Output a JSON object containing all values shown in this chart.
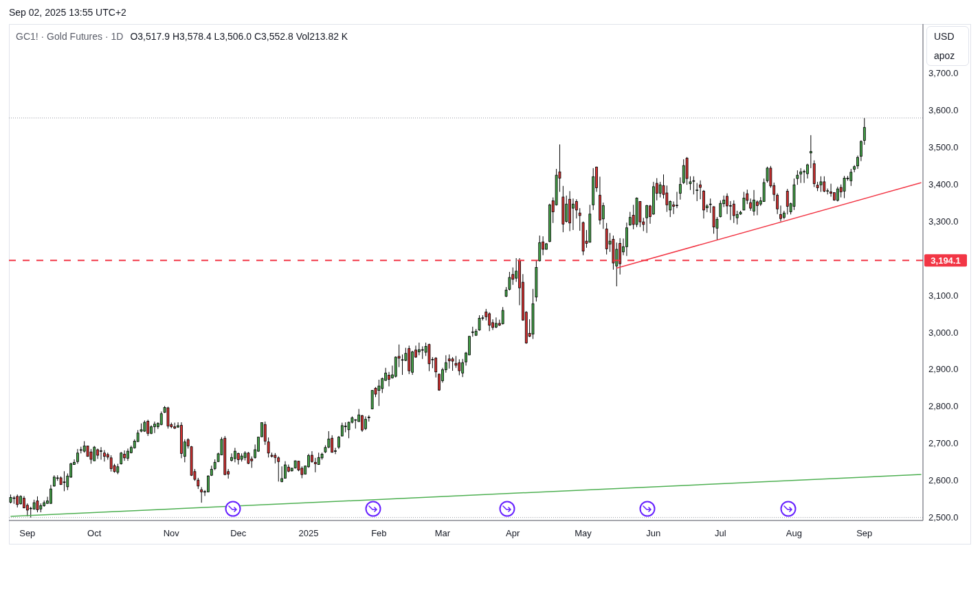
{
  "chart_data": {
    "type": "candlestick",
    "title": "GC1! · Gold Futures · 1D",
    "subtitle": "O3,517.9 H3,578.4 L3,506.0 C3,552.8 Vol213.82 K",
    "annotations": [
      "Sep 02, 2025 13:55 UTC+2",
      "USD",
      "apoz"
    ],
    "categories": [
      null,
      null,
      null,
      null,
      null,
      "Sep",
      null,
      null,
      null,
      null,
      null,
      null,
      null,
      null,
      null,
      null,
      null,
      null,
      null,
      null,
      null,
      null,
      null,
      null,
      null,
      "Oct",
      null,
      null,
      null,
      null,
      null,
      null,
      null,
      null,
      null,
      null,
      null,
      null,
      null,
      null,
      null,
      null,
      null,
      null,
      null,
      null,
      null,
      null,
      "Nov",
      null,
      null,
      null,
      null,
      null,
      null,
      null,
      null,
      null,
      null,
      null,
      null,
      null,
      null,
      null,
      null,
      null,
      null,
      null,
      "Dec",
      null,
      null,
      null,
      null,
      null,
      null,
      null,
      null,
      null,
      null,
      null,
      null,
      null,
      null,
      null,
      null,
      null,
      null,
      null,
      null,
      "2025",
      null,
      null,
      null,
      null,
      null,
      null,
      null,
      null,
      null,
      null,
      null,
      null,
      null,
      null,
      null,
      null,
      null,
      null,
      null,
      null,
      "Feb",
      null,
      null,
      null,
      null,
      null,
      null,
      null,
      null,
      null,
      null,
      null,
      null,
      null,
      null,
      null,
      null,
      null,
      null,
      "Mar",
      null,
      null,
      null,
      null,
      null,
      null,
      null,
      null,
      null,
      null,
      null,
      null,
      null,
      null,
      null,
      null,
      null,
      null,
      null,
      null,
      "Apr",
      null,
      null,
      null,
      null,
      null,
      null,
      null,
      null,
      null,
      null,
      null,
      null,
      null,
      null,
      null,
      null,
      null,
      null,
      null,
      null,
      "May",
      null,
      null,
      null,
      null,
      null,
      null,
      null,
      null,
      null,
      null,
      null,
      null,
      null,
      null,
      null,
      null,
      null,
      null,
      null,
      null,
      "Jun",
      null,
      null,
      null,
      null,
      null,
      null,
      null,
      null,
      null,
      null,
      null,
      null,
      null,
      null,
      null,
      null,
      null,
      null,
      null,
      "Jul",
      null,
      null,
      null,
      null,
      null,
      null,
      null,
      null,
      null,
      null,
      null,
      null,
      null,
      null,
      null,
      null,
      null,
      null,
      null,
      null,
      null,
      "Aug",
      null,
      null,
      null,
      null,
      null,
      null,
      null,
      null,
      null,
      null,
      null,
      null,
      null,
      null,
      null,
      null,
      null,
      null,
      null,
      null,
      "Sep",
      null,
      null,
      null,
      null,
      null,
      null,
      null,
      null,
      null,
      null,
      null,
      null,
      null,
      null,
      null,
      null,
      null
    ],
    "ohlc": [
      [
        2541,
        2562,
        2538,
        2554
      ],
      [
        2552,
        2558,
        2537,
        2553
      ],
      [
        2557,
        2562,
        2527,
        2535
      ],
      [
        2537,
        2560,
        2535,
        2557
      ],
      [
        2552,
        2558,
        2525,
        2526
      ],
      [
        2533,
        2538,
        2503,
        2520
      ],
      [
        2524,
        2529,
        2500,
        2525
      ],
      [
        2523,
        2548,
        2521,
        2540
      ],
      [
        2545,
        2557,
        2514,
        2521
      ],
      [
        2523,
        2538,
        2514,
        2532
      ],
      [
        2532,
        2546,
        2529,
        2540
      ],
      [
        2538,
        2556,
        2537,
        2545
      ],
      [
        2538,
        2588,
        2537,
        2577
      ],
      [
        2585,
        2614,
        2583,
        2609
      ],
      [
        2606,
        2614,
        2599,
        2607
      ],
      [
        2607,
        2611,
        2588,
        2589
      ],
      [
        2596,
        2625,
        2571,
        2595
      ],
      [
        2583,
        2619,
        2574,
        2612
      ],
      [
        2609,
        2648,
        2607,
        2645
      ],
      [
        2643,
        2657,
        2642,
        2649
      ],
      [
        2651,
        2685,
        2645,
        2674
      ],
      [
        2682,
        2691,
        2673,
        2683
      ],
      [
        2679,
        2706,
        2675,
        2693
      ],
      [
        2693,
        2694,
        2664,
        2665
      ],
      [
        2677,
        2685,
        2645,
        2657
      ],
      [
        2653,
        2693,
        2653,
        2690
      ],
      [
        2683,
        2686,
        2658,
        2668
      ],
      [
        2679,
        2690,
        2656,
        2680
      ],
      [
        2674,
        2682,
        2651,
        2665
      ],
      [
        2670,
        2675,
        2656,
        2663
      ],
      [
        2661,
        2668,
        2624,
        2632
      ],
      [
        2640,
        2645,
        2621,
        2624
      ],
      [
        2622,
        2645,
        2617,
        2637
      ],
      [
        2645,
        2677,
        2643,
        2674
      ],
      [
        2671,
        2681,
        2653,
        2661
      ],
      [
        2660,
        2686,
        2653,
        2679
      ],
      [
        2675,
        2694,
        2673,
        2689
      ],
      [
        2688,
        2711,
        2686,
        2706
      ],
      [
        2705,
        2736,
        2704,
        2728
      ],
      [
        2733,
        2754,
        2730,
        2737
      ],
      [
        2733,
        2762,
        2731,
        2757
      ],
      [
        2760,
        2764,
        2720,
        2727
      ],
      [
        2727,
        2749,
        2725,
        2745
      ],
      [
        2745,
        2759,
        2728,
        2752
      ],
      [
        2745,
        2757,
        2739,
        2754
      ],
      [
        2751,
        2786,
        2749,
        2780
      ],
      [
        2784,
        2801,
        2782,
        2797
      ],
      [
        2796,
        2799,
        2740,
        2747
      ],
      [
        2751,
        2756,
        2741,
        2745
      ],
      [
        2745,
        2756,
        2739,
        2741
      ],
      [
        2744,
        2757,
        2742,
        2748
      ],
      [
        2749,
        2757,
        2660,
        2673
      ],
      [
        2665,
        2711,
        2649,
        2704
      ],
      [
        2710,
        2714,
        2686,
        2693
      ],
      [
        2691,
        2693,
        2612,
        2614
      ],
      [
        2624,
        2631,
        2599,
        2603
      ],
      [
        2601,
        2607,
        2577,
        2585
      ],
      [
        2575,
        2582,
        2540,
        2569
      ],
      [
        2569,
        2574,
        2558,
        2570
      ],
      [
        2569,
        2614,
        2568,
        2612
      ],
      [
        2614,
        2640,
        2612,
        2630
      ],
      [
        2632,
        2657,
        2628,
        2649
      ],
      [
        2651,
        2675,
        2650,
        2672
      ],
      [
        2669,
        2717,
        2668,
        2711
      ],
      [
        2714,
        2720,
        2614,
        2616
      ],
      [
        2624,
        2631,
        2605,
        2617
      ],
      [
        2654,
        2673,
        2651,
        2662
      ],
      [
        2659,
        2688,
        2649,
        2679
      ],
      [
        2673,
        2675,
        2643,
        2656
      ],
      [
        2657,
        2673,
        2651,
        2666
      ],
      [
        2662,
        2679,
        2654,
        2674
      ],
      [
        2674,
        2677,
        2644,
        2646
      ],
      [
        2658,
        2665,
        2634,
        2653
      ],
      [
        2662,
        2697,
        2659,
        2683
      ],
      [
        2679,
        2718,
        2677,
        2717
      ],
      [
        2718,
        2757,
        2717,
        2756
      ],
      [
        2751,
        2759,
        2696,
        2706
      ],
      [
        2704,
        2716,
        2662,
        2674
      ],
      [
        2668,
        2675,
        2662,
        2665
      ],
      [
        2668,
        2674,
        2646,
        2662
      ],
      [
        2661,
        2665,
        2597,
        2651
      ],
      [
        2597,
        2638,
        2595,
        2605
      ],
      [
        2606,
        2652,
        2605,
        2642
      ],
      [
        2636,
        2643,
        2622,
        2625
      ],
      [
        2626,
        2634,
        2624,
        2633
      ],
      [
        2634,
        2654,
        2632,
        2653
      ],
      [
        2652,
        2653,
        2625,
        2628
      ],
      [
        2633,
        2638,
        2606,
        2616
      ],
      [
        2617,
        2640,
        2616,
        2639
      ],
      [
        2637,
        2672,
        2634,
        2667
      ],
      [
        2668,
        2679,
        2648,
        2651
      ],
      [
        2649,
        2661,
        2622,
        2645
      ],
      [
        2643,
        2675,
        2642,
        2662
      ],
      [
        2661,
        2675,
        2656,
        2671
      ],
      [
        2677,
        2695,
        2674,
        2689
      ],
      [
        2690,
        2733,
        2687,
        2712
      ],
      [
        2714,
        2722,
        2675,
        2676
      ],
      [
        2679,
        2688,
        2671,
        2680
      ],
      [
        2690,
        2720,
        2685,
        2717
      ],
      [
        2720,
        2756,
        2719,
        2748
      ],
      [
        2745,
        2757,
        2730,
        2747
      ],
      [
        2737,
        2759,
        2714,
        2757
      ],
      [
        2757,
        2773,
        2754,
        2769
      ],
      [
        2763,
        2765,
        2740,
        2764
      ],
      [
        2759,
        2793,
        2758,
        2777
      ],
      [
        2775,
        2777,
        2731,
        2736
      ],
      [
        2740,
        2773,
        2736,
        2765
      ],
      [
        2770,
        2776,
        2759,
        2771
      ],
      [
        2793,
        2844,
        2792,
        2843
      ],
      [
        2849,
        2852,
        2825,
        2833
      ],
      [
        2843,
        2872,
        2801,
        2855
      ],
      [
        2848,
        2878,
        2836,
        2875
      ],
      [
        2870,
        2904,
        2869,
        2890
      ],
      [
        2884,
        2893,
        2854,
        2873
      ],
      [
        2877,
        2910,
        2875,
        2885
      ],
      [
        2881,
        2935,
        2878,
        2933
      ],
      [
        2935,
        2967,
        2906,
        2930
      ],
      [
        2925,
        2940,
        2885,
        2926
      ],
      [
        2924,
        2958,
        2922,
        2943
      ],
      [
        2956,
        2964,
        2887,
        2896
      ],
      [
        2892,
        2950,
        2885,
        2947
      ],
      [
        2952,
        2964,
        2931,
        2933
      ],
      [
        2947,
        2972,
        2938,
        2953
      ],
      [
        2952,
        2962,
        2928,
        2953
      ],
      [
        2946,
        2972,
        2936,
        2962
      ],
      [
        2967,
        2969,
        2895,
        2915
      ],
      [
        2926,
        2933,
        2903,
        2927
      ],
      [
        2930,
        2933,
        2878,
        2893
      ],
      [
        2887,
        2888,
        2842,
        2844
      ],
      [
        2869,
        2904,
        2864,
        2899
      ],
      [
        2899,
        2938,
        2891,
        2918
      ],
      [
        2928,
        2940,
        2902,
        2923
      ],
      [
        2928,
        2933,
        2896,
        2922
      ],
      [
        2916,
        2936,
        2904,
        2911
      ],
      [
        2918,
        2927,
        2884,
        2896
      ],
      [
        2890,
        2928,
        2879,
        2918
      ],
      [
        2920,
        2947,
        2910,
        2944
      ],
      [
        2939,
        2990,
        2938,
        2989
      ],
      [
        3000,
        3015,
        2988,
        3001
      ],
      [
        2992,
        3009,
        2990,
        3003
      ],
      [
        3006,
        3046,
        3004,
        3038
      ],
      [
        3038,
        3046,
        3032,
        3039
      ],
      [
        3055,
        3063,
        3032,
        3042
      ],
      [
        3050,
        3054,
        3003,
        3019
      ],
      [
        3026,
        3035,
        3006,
        3013
      ],
      [
        3014,
        3040,
        3011,
        3024
      ],
      [
        3024,
        3034,
        3017,
        3019
      ],
      [
        3023,
        3068,
        3021,
        3059
      ],
      [
        3097,
        3122,
        3095,
        3114
      ],
      [
        3116,
        3163,
        3113,
        3148
      ],
      [
        3156,
        3175,
        3128,
        3143
      ],
      [
        3146,
        3200,
        3136,
        3165
      ],
      [
        3194,
        3200,
        3073,
        3120
      ],
      [
        3135,
        3157,
        3031,
        3033
      ],
      [
        3054,
        3057,
        2969,
        2971
      ],
      [
        2997,
        3035,
        2987,
        2989
      ],
      [
        2995,
        3117,
        2982,
        3077
      ],
      [
        3095,
        3193,
        3083,
        3175
      ],
      [
        3193,
        3261,
        3191,
        3242
      ],
      [
        3244,
        3259,
        3208,
        3224
      ],
      [
        3224,
        3241,
        3223,
        3239
      ],
      [
        3245,
        3347,
        3243,
        3344
      ],
      [
        3355,
        3364,
        3295,
        3325
      ],
      [
        3344,
        3441,
        3342,
        3424
      ],
      [
        3433,
        3507,
        3379,
        3416
      ],
      [
        3365,
        3395,
        3270,
        3292
      ],
      [
        3299,
        3369,
        3296,
        3346
      ],
      [
        3359,
        3381,
        3273,
        3295
      ],
      [
        3335,
        3361,
        3276,
        3346
      ],
      [
        3353,
        3359,
        3307,
        3330
      ],
      [
        3322,
        3335,
        3274,
        3315
      ],
      [
        3296,
        3299,
        3208,
        3219
      ],
      [
        3246,
        3276,
        3228,
        3240
      ],
      [
        3243,
        3344,
        3242,
        3319
      ],
      [
        3344,
        3443,
        3330,
        3420
      ],
      [
        3446,
        3447,
        3379,
        3390
      ],
      [
        3370,
        3420,
        3291,
        3303
      ],
      [
        3306,
        3350,
        3279,
        3342
      ],
      [
        3279,
        3295,
        3210,
        3225
      ],
      [
        3238,
        3268,
        3217,
        3246
      ],
      [
        3251,
        3261,
        3169,
        3187
      ],
      [
        3179,
        3242,
        3124,
        3224
      ],
      [
        3240,
        3254,
        3156,
        3185
      ],
      [
        3217,
        3253,
        3208,
        3231
      ],
      [
        3231,
        3296,
        3206,
        3282
      ],
      [
        3290,
        3325,
        3287,
        3310
      ],
      [
        3316,
        3344,
        3278,
        3291
      ],
      [
        3291,
        3364,
        3284,
        3362
      ],
      [
        3353,
        3354,
        3284,
        3298
      ],
      [
        3298,
        3309,
        3273,
        3291
      ],
      [
        3309,
        3344,
        3268,
        3342
      ],
      [
        3341,
        3344,
        3293,
        3312
      ],
      [
        3319,
        3406,
        3317,
        3393
      ],
      [
        3402,
        3416,
        3356,
        3375
      ],
      [
        3375,
        3406,
        3364,
        3398
      ],
      [
        3396,
        3426,
        3361,
        3372
      ],
      [
        3376,
        3396,
        3325,
        3344
      ],
      [
        3330,
        3356,
        3311,
        3353
      ],
      [
        3344,
        3353,
        3319,
        3340
      ],
      [
        3342,
        3379,
        3335,
        3343
      ],
      [
        3375,
        3418,
        3358,
        3399
      ],
      [
        3404,
        3467,
        3400,
        3450
      ],
      [
        3470,
        3473,
        3398,
        3415
      ],
      [
        3401,
        3421,
        3384,
        3406
      ],
      [
        3408,
        3421,
        3372,
        3409
      ],
      [
        3383,
        3403,
        3354,
        3384
      ],
      [
        3398,
        3410,
        3359,
        3391
      ],
      [
        3381,
        3384,
        3307,
        3330
      ],
      [
        3336,
        3346,
        3324,
        3341
      ],
      [
        3345,
        3361,
        3322,
        3346
      ],
      [
        3339,
        3340,
        3266,
        3284
      ],
      [
        3281,
        3311,
        3249,
        3305
      ],
      [
        3312,
        3356,
        3310,
        3348
      ],
      [
        3347,
        3369,
        3338,
        3357
      ],
      [
        3367,
        3375,
        3319,
        3341
      ],
      [
        3341,
        3354,
        3303,
        3342
      ],
      [
        3346,
        3356,
        3295,
        3315
      ],
      [
        3309,
        3328,
        3291,
        3318
      ],
      [
        3319,
        3328,
        3317,
        3324
      ],
      [
        3330,
        3379,
        3329,
        3362
      ],
      [
        3374,
        3385,
        3346,
        3356
      ],
      [
        3350,
        3361,
        3328,
        3335
      ],
      [
        3327,
        3384,
        3315,
        3357
      ],
      [
        3352,
        3356,
        3316,
        3342
      ],
      [
        3346,
        3365,
        3341,
        3355
      ],
      [
        3353,
        3415,
        3352,
        3404
      ],
      [
        3409,
        3447,
        3404,
        3443
      ],
      [
        3443,
        3449,
        3390,
        3395
      ],
      [
        3396,
        3404,
        3354,
        3372
      ],
      [
        3370,
        3375,
        3319,
        3333
      ],
      [
        3318,
        3342,
        3299,
        3307
      ],
      [
        3310,
        3328,
        3305,
        3322
      ],
      [
        3381,
        3387,
        3318,
        3340
      ],
      [
        3325,
        3350,
        3318,
        3347
      ],
      [
        3340,
        3415,
        3330,
        3398
      ],
      [
        3415,
        3437,
        3398,
        3424
      ],
      [
        3427,
        3443,
        3403,
        3433
      ],
      [
        3433,
        3439,
        3403,
        3434
      ],
      [
        3428,
        3455,
        3415,
        3452
      ],
      [
        3484,
        3532,
        3443,
        3488
      ],
      [
        3455,
        3464,
        3392,
        3401
      ],
      [
        3397,
        3406,
        3381,
        3390
      ],
      [
        3398,
        3421,
        3379,
        3406
      ],
      [
        3406,
        3421,
        3378,
        3381
      ],
      [
        3381,
        3388,
        3372,
        3382
      ],
      [
        3379,
        3401,
        3366,
        3375
      ],
      [
        3377,
        3378,
        3355,
        3357
      ],
      [
        3356,
        3393,
        3353,
        3387
      ],
      [
        3391,
        3399,
        3364,
        3379
      ],
      [
        3381,
        3422,
        3362,
        3416
      ],
      [
        3415,
        3422,
        3409,
        3416
      ],
      [
        3409,
        3441,
        3395,
        3432
      ],
      [
        3440,
        3451,
        3432,
        3447
      ],
      [
        3449,
        3477,
        3441,
        3472
      ],
      [
        3475,
        3518,
        3462,
        3515
      ],
      [
        3517.9,
        3578.4,
        3506.0,
        3552.8
      ],
      null,
      null,
      null,
      null,
      null,
      null,
      null,
      null,
      null,
      null,
      null,
      null,
      null,
      null,
      null,
      null,
      null
    ],
    "colors": [
      "#43a047",
      "#43a047",
      "#d32f2f",
      "#43a047",
      "#d32f2f",
      "#d32f2f",
      "#43a047",
      "#43a047",
      "#d32f2f",
      "#43a047",
      "#43a047",
      "#43a047",
      "#43a047",
      "#43a047",
      "#43a047",
      "#d32f2f",
      "#d32f2f",
      "#43a047",
      "#43a047",
      "#43a047",
      "#43a047",
      "#43a047",
      "#43a047",
      "#d32f2f",
      "#d32f2f",
      "#43a047",
      "#d32f2f",
      "#43a047",
      "#d32f2f",
      "#d32f2f",
      "#d32f2f",
      "#d32f2f",
      "#43a047",
      "#43a047",
      "#d32f2f",
      "#43a047",
      "#43a047",
      "#43a047",
      "#43a047",
      "#43a047",
      "#43a047",
      "#d32f2f",
      "#43a047",
      "#43a047",
      "#43a047",
      "#43a047",
      "#43a047",
      "#d32f2f",
      "#d32f2f",
      "#d32f2f",
      "#43a047",
      "#d32f2f",
      "#43a047",
      "#d32f2f",
      "#d32f2f",
      "#d32f2f",
      "#d32f2f",
      "#d32f2f",
      "#43a047",
      "#43a047",
      "#43a047",
      "#43a047",
      "#43a047",
      "#43a047",
      "#d32f2f",
      "#d32f2f",
      "#43a047",
      "#43a047",
      "#d32f2f",
      "#43a047",
      "#43a047",
      "#d32f2f",
      "#d32f2f",
      "#43a047",
      "#43a047",
      "#43a047",
      "#d32f2f",
      "#d32f2f",
      "#d32f2f",
      "#d32f2f",
      "#d32f2f",
      "#43a047",
      "#43a047",
      "#d32f2f",
      "#43a047",
      "#43a047",
      "#d32f2f",
      "#d32f2f",
      "#43a047",
      "#43a047",
      "#d32f2f",
      "#d32f2f",
      "#43a047",
      "#43a047",
      "#43a047",
      "#43a047",
      "#d32f2f",
      "#43a047",
      "#43a047",
      "#43a047",
      "#43a047",
      "#43a047",
      "#43a047",
      "#43a047",
      "#43a047",
      "#d32f2f",
      "#43a047",
      "#43a047",
      "#43a047",
      "#d32f2f",
      "#43a047",
      "#43a047",
      "#43a047",
      "#d32f2f",
      "#43a047",
      "#43a047",
      "#d32f2f",
      "#43a047",
      "#43a047",
      "#d32f2f",
      "#43a047",
      "#d32f2f",
      "#43a047",
      "#43a047",
      "#43a047",
      "#d32f2f",
      "#43a047",
      "#d32f2f",
      "#d32f2f",
      "#43a047",
      "#43a047",
      "#d32f2f",
      "#d32f2f",
      "#d32f2f",
      "#d32f2f",
      "#43a047",
      "#43a047",
      "#43a047",
      "#43a047",
      "#43a047",
      "#43a047",
      "#43a047",
      "#d32f2f",
      "#d32f2f",
      "#d32f2f",
      "#43a047",
      "#d32f2f",
      "#43a047",
      "#43a047",
      "#43a047",
      "#d32f2f",
      "#43a047",
      "#d32f2f",
      "#d32f2f",
      "#d32f2f",
      "#d32f2f",
      "#43a047",
      "#43a047",
      "#43a047",
      "#d32f2f",
      "#43a047",
      "#43a047",
      "#d32f2f",
      "#43a047",
      "#d32f2f",
      "#d32f2f",
      "#43a047",
      "#d32f2f",
      "#43a047",
      "#d32f2f",
      "#d32f2f",
      "#d32f2f",
      "#d32f2f",
      "#43a047",
      "#43a047",
      "#d32f2f",
      "#d32f2f",
      "#43a047",
      "#d32f2f",
      "#43a047",
      "#d32f2f",
      "#43a047",
      "#d32f2f",
      "#43a047",
      "#43a047",
      "#43a047",
      "#d32f2f",
      "#43a047",
      "#d32f2f",
      "#d32f2f",
      "#43a047",
      "#d32f2f",
      "#43a047",
      "#d32f2f",
      "#43a047",
      "#d32f2f",
      "#d32f2f",
      "#43a047",
      "#d32f2f",
      "#43a047",
      "#43a047",
      "#43a047",
      "#d32f2f",
      "#43a047",
      "#43a047",
      "#43a047",
      "#d32f2f",
      "#d32f2f",
      "#43a047",
      "#43a047",
      "#d32f2f",
      "#43a047",
      "#43a047",
      "#43a047",
      "#d32f2f",
      "#43a047",
      "#d32f2f",
      "#43a047",
      "#43a047",
      "#43a047",
      "#d32f2f",
      "#d32f2f",
      "#43a047",
      "#d32f2f",
      "#43a047",
      "#43a047",
      "#43a047",
      "#d32f2f",
      "#d32f2f",
      "#d32f2f",
      "#d32f2f",
      "#43a047",
      "#d32f2f",
      "#43a047",
      "#43a047",
      "#43a047",
      "#43a047",
      "#43a047",
      "#43a047",
      "#43a047",
      "#d32f2f",
      "#d32f2f",
      "#43a047",
      "#d32f2f",
      "#43a047",
      "#d32f2f",
      "#d32f2f",
      "#43a047",
      "#d32f2f",
      "#43a047",
      "#43a047",
      "#43a047",
      "#43a047",
      "#43a047",
      "#43a047",
      "#43a047",
      null,
      null,
      null,
      null,
      null,
      null,
      null,
      null,
      null,
      null,
      null,
      null,
      null,
      null,
      null,
      null,
      null
    ],
    "series": [
      {
        "type": "line",
        "color": "#4caf50",
        "values": [
          2503,
          null,
          null,
          null,
          null,
          null,
          null,
          null,
          null,
          null,
          null,
          null,
          null,
          null,
          null,
          null,
          null,
          null,
          null,
          null,
          null,
          null,
          null,
          null,
          null,
          null,
          null,
          null,
          null,
          null,
          null,
          null,
          null,
          null,
          null,
          null,
          null,
          null,
          null,
          null,
          null,
          null,
          null,
          null,
          null,
          null,
          null,
          null,
          null,
          null,
          null,
          null,
          null,
          null,
          null,
          null,
          null,
          null,
          null,
          null,
          null,
          null,
          null,
          null,
          null,
          null,
          null,
          null,
          null,
          null,
          null,
          null,
          null,
          null,
          null,
          null,
          null,
          null,
          null,
          null,
          null,
          null,
          null,
          null,
          null,
          null,
          null,
          null,
          null,
          null,
          null,
          null,
          null,
          null,
          null,
          null,
          null,
          null,
          null,
          null,
          null,
          null,
          null,
          null,
          null,
          null,
          null,
          null,
          null,
          null,
          null,
          null,
          null,
          null,
          null,
          null,
          null,
          null,
          null,
          null,
          null,
          null,
          null,
          null,
          null,
          null,
          null,
          null,
          null,
          null,
          null,
          null,
          null,
          null,
          null,
          null,
          null,
          null,
          null,
          null,
          null,
          null,
          null,
          null,
          null,
          null,
          null,
          null,
          null,
          null,
          null,
          null,
          null,
          null,
          null,
          null,
          null,
          null,
          null,
          null,
          null,
          null,
          null,
          null,
          null,
          null,
          null,
          null,
          null,
          null,
          null,
          null,
          null,
          null,
          null,
          null,
          null,
          null,
          null,
          null,
          null,
          null,
          null,
          null,
          null,
          null,
          null,
          null,
          null,
          null,
          null,
          null,
          null,
          null,
          null,
          null,
          null,
          null,
          null,
          null,
          null,
          null,
          null,
          null,
          null,
          null,
          null,
          null,
          null,
          null,
          null,
          null,
          null,
          null,
          null,
          null,
          null,
          null,
          null,
          null,
          null,
          null,
          null,
          null,
          null,
          null,
          null,
          null,
          null,
          null,
          null,
          null,
          null,
          null,
          null,
          null,
          null,
          null,
          null,
          null,
          null,
          null,
          null,
          null,
          null,
          null,
          null,
          null,
          null,
          null,
          null,
          null,
          null,
          null,
          null,
          null,
          null,
          null,
          null,
          null,
          null,
          null,
          null,
          null,
          null,
          null,
          null,
          null,
          null,
          null,
          null,
          null,
          2616
        ]
      },
      {
        "type": "line",
        "color": "#f23645",
        "values": [
          null,
          null,
          null,
          null,
          null,
          null,
          null,
          null,
          null,
          null,
          null,
          null,
          null,
          null,
          null,
          null,
          null,
          null,
          null,
          null,
          null,
          null,
          null,
          null,
          null,
          null,
          null,
          null,
          null,
          null,
          null,
          null,
          null,
          null,
          null,
          null,
          null,
          null,
          null,
          null,
          null,
          null,
          null,
          null,
          null,
          null,
          null,
          null,
          null,
          null,
          null,
          null,
          null,
          null,
          null,
          null,
          null,
          null,
          null,
          null,
          null,
          null,
          null,
          null,
          null,
          null,
          null,
          null,
          null,
          null,
          null,
          null,
          null,
          null,
          null,
          null,
          null,
          null,
          null,
          null,
          null,
          null,
          null,
          null,
          null,
          null,
          null,
          null,
          null,
          null,
          null,
          null,
          null,
          null,
          null,
          null,
          null,
          null,
          null,
          null,
          null,
          null,
          null,
          null,
          null,
          null,
          null,
          null,
          null,
          null,
          null,
          null,
          null,
          null,
          null,
          null,
          null,
          null,
          null,
          null,
          null,
          null,
          null,
          null,
          null,
          null,
          null,
          null,
          null,
          null,
          null,
          null,
          null,
          null,
          null,
          null,
          null,
          null,
          null,
          null,
          null,
          null,
          null,
          null,
          null,
          null,
          null,
          null,
          null,
          null,
          null,
          null,
          null,
          null,
          null,
          null,
          null,
          null,
          null,
          null,
          null,
          null,
          null,
          null,
          null,
          null,
          null,
          null,
          null,
          null,
          null,
          null,
          null,
          null,
          null,
          null,
          null,
          null,
          null,
          null,
          null,
          3173,
          null,
          null,
          null,
          null,
          null,
          null,
          null,
          null,
          null,
          null,
          null,
          null,
          null,
          null,
          null,
          null,
          null,
          null,
          null,
          null,
          null,
          null,
          null,
          null,
          null,
          null,
          null,
          null,
          null,
          null,
          null,
          null,
          null,
          null,
          null,
          null,
          null,
          null,
          null,
          null,
          null,
          null,
          null,
          null,
          null,
          null,
          null,
          null,
          null,
          null,
          null,
          null,
          null,
          null,
          null,
          null,
          null,
          null,
          null,
          null,
          null,
          null,
          null,
          null,
          null,
          null,
          null,
          null,
          null,
          null,
          null,
          null,
          null,
          null,
          null,
          null,
          null,
          null,
          null,
          null,
          null,
          null,
          null,
          null,
          null,
          null,
          null,
          null,
          null,
          null,
          3404
        ]
      }
    ],
    "ylim": [
      2492,
      3832
    ],
    "yticks": [
      {
        "value": 2500,
        "label": "2,500.0"
      },
      {
        "value": 2600,
        "label": "2,600.0"
      },
      {
        "value": 2700,
        "label": "2,700.0"
      },
      {
        "value": 2800,
        "label": "2,800.0"
      },
      {
        "value": 2900,
        "label": "2,900.0"
      },
      {
        "value": 3000,
        "label": "3,000.0"
      },
      {
        "value": 3100,
        "label": "3,100.0"
      },
      {
        "value": 3300,
        "label": "3,300.0"
      },
      {
        "value": 3400,
        "label": "3,400.0"
      },
      {
        "value": 3500,
        "label": "3,500.0"
      },
      {
        "value": 3600,
        "label": "3,600.0"
      },
      {
        "value": 3700,
        "label": "3,700.0"
      }
    ],
    "ref_lines": [
      {
        "axis": "y",
        "value": 3194.1,
        "label": "3,194.1",
        "color": "#f23645",
        "line_style": "dashed"
      },
      {
        "axis": "y",
        "value": 3578.4,
        "color": "#9598a1",
        "line_style": "dotted"
      },
      {
        "axis": "y",
        "value": 2500,
        "color": "#9598a1",
        "line_style": "dotted"
      }
    ]
  }
}
